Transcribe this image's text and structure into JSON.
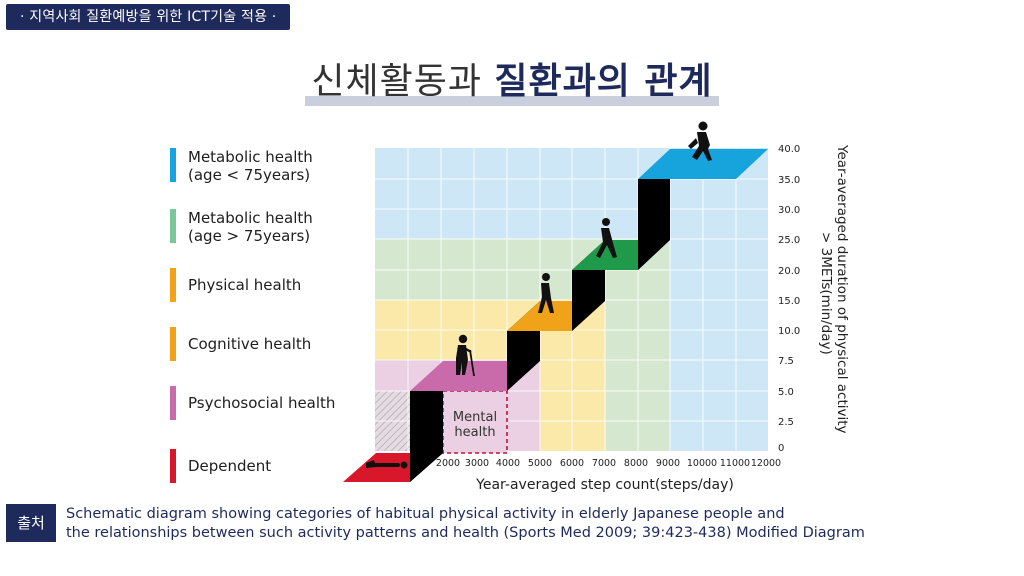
{
  "header_tag": "· 지역사회 질환예방을 위한 ICT기술 적용 ·",
  "title": {
    "light": "신체활동과 ",
    "bold": "질환과의 관계"
  },
  "legend": [
    {
      "label": "Metabolic health\n(age < 75years)",
      "color": "#17a4dc"
    },
    {
      "label": "Metabolic health\n(age > 75years)",
      "color": "#7ac79a"
    },
    {
      "label": "Physical health",
      "color": "#f0a218"
    },
    {
      "label": "Cognitive health",
      "color": "#f0a218"
    },
    {
      "label": "Psychosocial health",
      "color": "#c96aab"
    },
    {
      "label": "Dependent",
      "color": "#d8172b"
    }
  ],
  "chart": {
    "x_ticks": [
      "2000",
      "3000",
      "4000",
      "5000",
      "6000",
      "7000",
      "8000",
      "9000",
      "10000",
      "11000",
      "12000"
    ],
    "y_ticks": [
      "0",
      "2.5",
      "5.0",
      "7.5",
      "10.0",
      "15.0",
      "20.0",
      "25.0",
      "30.0",
      "35.0",
      "40.0"
    ],
    "x_label": "Year-averaged step count(steps/day)",
    "y_label_line1": "Year-averaged duration of physical activity",
    "y_label_line2": "> 3METs(min/day)",
    "mental_label_line1": "Mental",
    "mental_label_line2": "health",
    "colors": {
      "metabolic_young": "#cde7f7",
      "metabolic_old": "#d5e8cf",
      "physical": "#fbe9a9",
      "psychosocial": "#ead0e2",
      "step_blue": "#17a4dc",
      "step_green": "#1e9a4a",
      "step_orange": "#f0a218",
      "step_pink": "#c96aab",
      "step_red": "#d8172b"
    }
  },
  "source": {
    "label": "출처",
    "line1": "Schematic diagram showing categories of habitual physical activity in elderly Japanese people and",
    "line2": "the relationships between such activity patterns and health  (Sports Med 2009; 39:423-438) Modified Diagram"
  }
}
